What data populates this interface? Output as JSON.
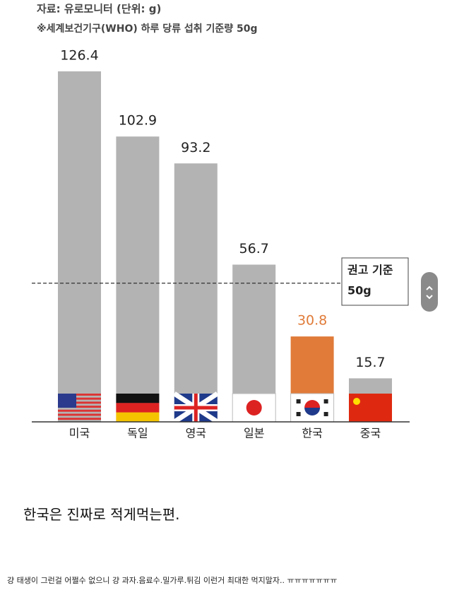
{
  "chart_data": {
    "type": "bar",
    "source": "자료: 유로모니터 (단위: g)",
    "note": "※세계보건기구(WHO) 하루 당류 섭취 기준량 50g",
    "categories": [
      "미국",
      "독일",
      "영국",
      "일본",
      "한국",
      "중국"
    ],
    "values": [
      126.4,
      102.9,
      93.2,
      56.7,
      30.8,
      15.7
    ],
    "colors": [
      "#b3b3b3",
      "#b3b3b3",
      "#b3b3b3",
      "#b3b3b3",
      "#e07b39",
      "#b3b3b3"
    ],
    "value_label_colors": [
      "#222222",
      "#222222",
      "#222222",
      "#222222",
      "#e07b39",
      "#222222"
    ],
    "ylim": [
      0,
      140
    ],
    "reference_line": {
      "value": 50,
      "label": "권고 기준",
      "value_label": "50g"
    }
  },
  "post": {
    "caption": "한국은 진짜로 적게먹는편.",
    "comment": "걍 태생이 그런걸 어쩔수 없으니 걍 과자.음료수.밀가루.튀김 이런거 최대한 먹지말자.. ㅠㅠㅠㅠㅠㅠㅠ"
  }
}
